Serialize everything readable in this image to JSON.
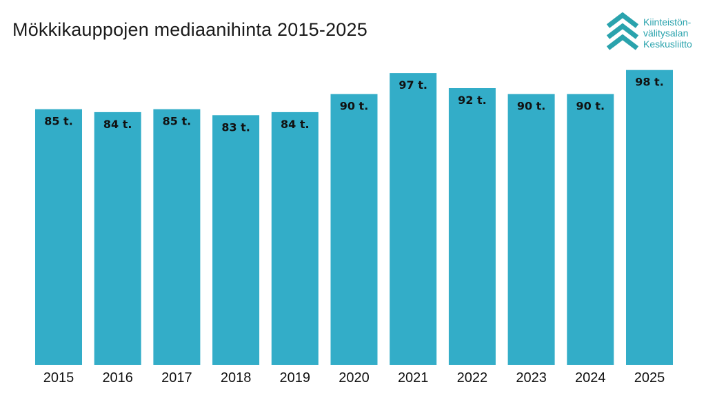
{
  "chart_data": {
    "type": "bar",
    "title": "Mökkikauppojen mediaanihinta 2015-2025",
    "xlabel": "",
    "ylabel": "",
    "ylim": [
      0,
      100
    ],
    "categories": [
      "2015",
      "2016",
      "2017",
      "2018",
      "2019",
      "2020",
      "2021",
      "2022",
      "2023",
      "2024",
      "2025"
    ],
    "values": [
      85,
      84,
      85,
      83,
      84,
      90,
      97,
      92,
      90,
      90,
      98
    ],
    "data_labels": [
      "85 t.",
      "84 t.",
      "85 t.",
      "83 t.",
      "84 t.",
      "90 t.",
      "97 t.",
      "92 t.",
      "90 t.",
      "90 t.",
      "98 t."
    ],
    "bar_color": "#33adc8",
    "grid": false,
    "legend": "none"
  },
  "logo": {
    "color": "#2aa3ad",
    "lines": [
      "Kiinteistön-",
      "välitysalan",
      "Keskusliitto"
    ]
  }
}
